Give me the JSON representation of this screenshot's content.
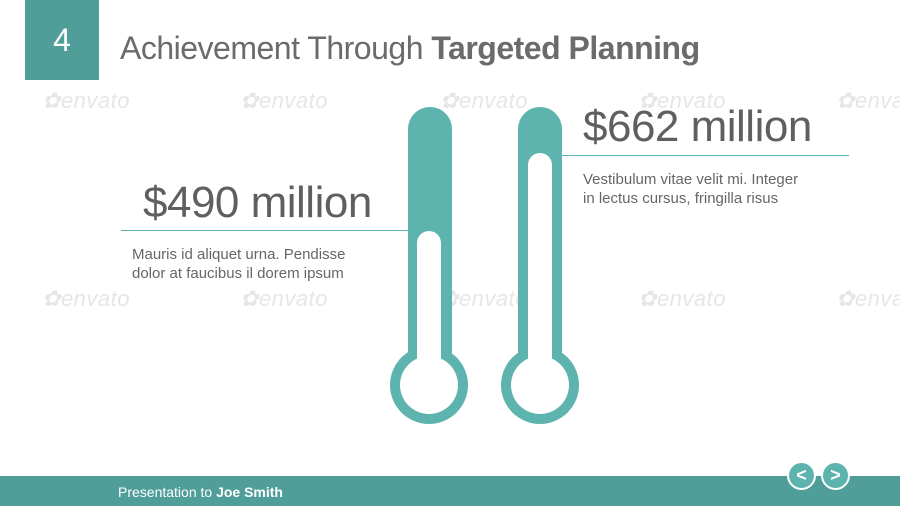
{
  "slide": {
    "number": "4",
    "title_light": "Achievement Through ",
    "title_bold": "Targeted Planning"
  },
  "left": {
    "amount": "$490 million",
    "desc_line1": "Mauris id aliquet urna. Pendisse",
    "desc_line2": "dolor at faucibus il dorem ipsum"
  },
  "right": {
    "amount": "$662 million",
    "desc_line1": "Vestibulum vitae velit mi. Integer",
    "desc_line2": "in lectus cursus, fringilla risus"
  },
  "footer": {
    "prefix": "Presentation to ",
    "name": "Joe Smith"
  },
  "nav": {
    "prev": "<",
    "next": ">"
  },
  "watermark": "envato",
  "colors": {
    "accent": "#5db4ae",
    "accent_dark": "#4f9e99",
    "text": "#5f5f5f"
  }
}
